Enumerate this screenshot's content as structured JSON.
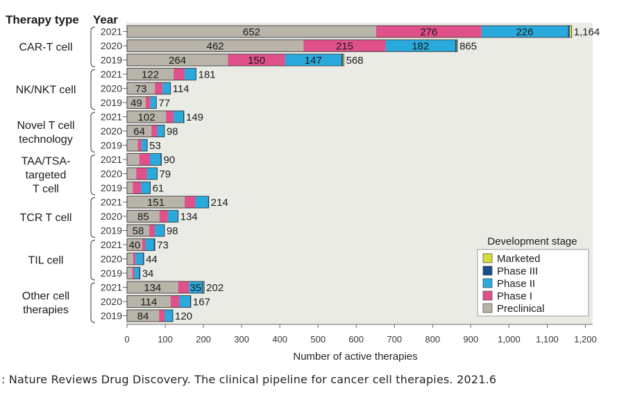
{
  "chart_data": {
    "type": "bar",
    "stacked": true,
    "orientation": "horizontal",
    "header": {
      "group_label": "Therapy type",
      "year_label": "Year"
    },
    "xlabel": "Number of active therapies",
    "xlim": [
      0,
      1200
    ],
    "xticks": [
      {
        "value": 0,
        "label": "0"
      },
      {
        "value": 100,
        "label": "100"
      },
      {
        "value": 200,
        "label": "200"
      },
      {
        "value": 300,
        "label": "300"
      },
      {
        "value": 400,
        "label": "400"
      },
      {
        "value": 500,
        "label": "500"
      },
      {
        "value": 600,
        "label": "600"
      },
      {
        "value": 700,
        "label": "700"
      },
      {
        "value": 800,
        "label": "800"
      },
      {
        "value": 900,
        "label": "900"
      },
      {
        "value": 1000,
        "label": "1,000"
      },
      {
        "value": 1100,
        "label": "1,100"
      },
      {
        "value": 1200,
        "label": "1,200"
      }
    ],
    "grid": false,
    "legend": {
      "title": "Development stage",
      "placement": "bottom-right",
      "entries": [
        {
          "key": "marketed",
          "label": "Marketed"
        },
        {
          "key": "phase3",
          "label": "Phase III"
        },
        {
          "key": "phase2",
          "label": "Phase II"
        },
        {
          "key": "phase1",
          "label": "Phase I"
        },
        {
          "key": "preclinical",
          "label": "Preclinical"
        }
      ]
    },
    "colors": {
      "preclinical": "#b9b4a9",
      "phase1": "#e0508a",
      "phase2": "#2aa9dc",
      "phase3": "#1a4f8c",
      "marketed": "#d8dc3a",
      "panel": "#ebebe6",
      "text": "#1a1a1a"
    },
    "stage_order": [
      "preclinical",
      "phase1",
      "phase2",
      "phase3",
      "marketed"
    ],
    "groups": [
      {
        "label": [
          "CAR-T cell"
        ],
        "rows": [
          {
            "year": "2021",
            "total": 1164,
            "total_label": "1,164",
            "stages": {
              "preclinical": 652,
              "phase1": 276,
              "phase2": 226,
              "phase3": 5,
              "marketed": 5
            },
            "labels": {
              "preclinical": "652",
              "phase1": "276",
              "phase2": "226"
            }
          },
          {
            "year": "2020",
            "total": 865,
            "total_label": "865",
            "stages": {
              "preclinical": 462,
              "phase1": 215,
              "phase2": 182,
              "phase3": 4,
              "marketed": 2
            },
            "labels": {
              "preclinical": "462",
              "phase1": "215",
              "phase2": "182"
            }
          },
          {
            "year": "2019",
            "total": 568,
            "total_label": "568",
            "stages": {
              "preclinical": 264,
              "phase1": 150,
              "phase2": 147,
              "phase3": 4,
              "marketed": 3
            },
            "labels": {
              "preclinical": "264",
              "phase1": "150",
              "phase2": "147"
            }
          }
        ]
      },
      {
        "label": [
          "NK/NKT cell"
        ],
        "rows": [
          {
            "year": "2021",
            "total": 181,
            "total_label": "181",
            "stages": {
              "preclinical": 122,
              "phase1": 29,
              "phase2": 30,
              "phase3": 0,
              "marketed": 0
            },
            "labels": {
              "preclinical": "122"
            }
          },
          {
            "year": "2020",
            "total": 114,
            "total_label": "114",
            "stages": {
              "preclinical": 73,
              "phase1": 20,
              "phase2": 21,
              "phase3": 0,
              "marketed": 0
            },
            "labels": {
              "preclinical": "73"
            }
          },
          {
            "year": "2019",
            "total": 77,
            "total_label": "77",
            "stages": {
              "preclinical": 49,
              "phase1": 12,
              "phase2": 16,
              "phase3": 0,
              "marketed": 0
            },
            "labels": {
              "preclinical": "49"
            }
          }
        ]
      },
      {
        "label": [
          "Novel T cell",
          "technology"
        ],
        "rows": [
          {
            "year": "2021",
            "total": 149,
            "total_label": "149",
            "stages": {
              "preclinical": 102,
              "phase1": 20,
              "phase2": 25,
              "phase3": 2,
              "marketed": 0
            },
            "labels": {
              "preclinical": "102"
            }
          },
          {
            "year": "2020",
            "total": 98,
            "total_label": "98",
            "stages": {
              "preclinical": 64,
              "phase1": 15,
              "phase2": 18,
              "phase3": 1,
              "marketed": 0
            },
            "labels": {
              "preclinical": "64"
            }
          },
          {
            "year": "2019",
            "total": 53,
            "total_label": "53",
            "stages": {
              "preclinical": 28,
              "phase1": 10,
              "phase2": 14,
              "phase3": 1,
              "marketed": 0
            },
            "labels": {}
          }
        ]
      },
      {
        "label": [
          "TAA/TSA-",
          "targeted",
          "T cell"
        ],
        "rows": [
          {
            "year": "2021",
            "total": 90,
            "total_label": "90",
            "stages": {
              "preclinical": 32,
              "phase1": 28,
              "phase2": 28,
              "phase3": 2,
              "marketed": 0
            },
            "labels": {}
          },
          {
            "year": "2020",
            "total": 79,
            "total_label": "79",
            "stages": {
              "preclinical": 24,
              "phase1": 28,
              "phase2": 26,
              "phase3": 1,
              "marketed": 0
            },
            "labels": {}
          },
          {
            "year": "2019",
            "total": 61,
            "total_label": "61",
            "stages": {
              "preclinical": 15,
              "phase1": 22,
              "phase2": 23,
              "phase3": 1,
              "marketed": 0
            },
            "labels": {}
          }
        ]
      },
      {
        "label": [
          "TCR T cell"
        ],
        "rows": [
          {
            "year": "2021",
            "total": 214,
            "total_label": "214",
            "stages": {
              "preclinical": 151,
              "phase1": 28,
              "phase2": 33,
              "phase3": 2,
              "marketed": 0
            },
            "labels": {
              "preclinical": "151"
            }
          },
          {
            "year": "2020",
            "total": 134,
            "total_label": "134",
            "stages": {
              "preclinical": 85,
              "phase1": 22,
              "phase2": 26,
              "phase3": 1,
              "marketed": 0
            },
            "labels": {
              "preclinical": "85"
            }
          },
          {
            "year": "2019",
            "total": 98,
            "total_label": "98",
            "stages": {
              "preclinical": 58,
              "phase1": 15,
              "phase2": 24,
              "phase3": 1,
              "marketed": 0
            },
            "labels": {
              "preclinical": "58"
            }
          }
        ]
      },
      {
        "label": [
          "TIL cell"
        ],
        "rows": [
          {
            "year": "2021",
            "total": 73,
            "total_label": "73",
            "stages": {
              "preclinical": 40,
              "phase1": 8,
              "phase2": 22,
              "phase3": 3,
              "marketed": 0
            },
            "labels": {
              "preclinical": "40"
            }
          },
          {
            "year": "2020",
            "total": 44,
            "total_label": "44",
            "stages": {
              "preclinical": 16,
              "phase1": 6,
              "phase2": 20,
              "phase3": 2,
              "marketed": 0
            },
            "labels": {}
          },
          {
            "year": "2019",
            "total": 34,
            "total_label": "34",
            "stages": {
              "preclinical": 14,
              "phase1": 5,
              "phase2": 13,
              "phase3": 2,
              "marketed": 0
            },
            "labels": {}
          }
        ]
      },
      {
        "label": [
          "Other cell",
          "therapies"
        ],
        "rows": [
          {
            "year": "2021",
            "total": 202,
            "total_label": "202",
            "stages": {
              "preclinical": 134,
              "phase1": 28,
              "phase2": 35,
              "phase3": 3,
              "marketed": 2
            },
            "labels": {
              "preclinical": "134",
              "phase2": "35"
            }
          },
          {
            "year": "2020",
            "total": 167,
            "total_label": "167",
            "stages": {
              "preclinical": 114,
              "phase1": 23,
              "phase2": 28,
              "phase3": 2,
              "marketed": 0
            },
            "labels": {
              "preclinical": "114"
            }
          },
          {
            "year": "2019",
            "total": 120,
            "total_label": "120",
            "stages": {
              "preclinical": 84,
              "phase1": 15,
              "phase2": 20,
              "phase3": 1,
              "marketed": 0
            },
            "labels": {
              "preclinical": "84"
            }
          }
        ]
      }
    ]
  },
  "caption": ": Nature Reviews Drug Discovery. The clinical pipeline for cancer cell therapies. 2021.6"
}
